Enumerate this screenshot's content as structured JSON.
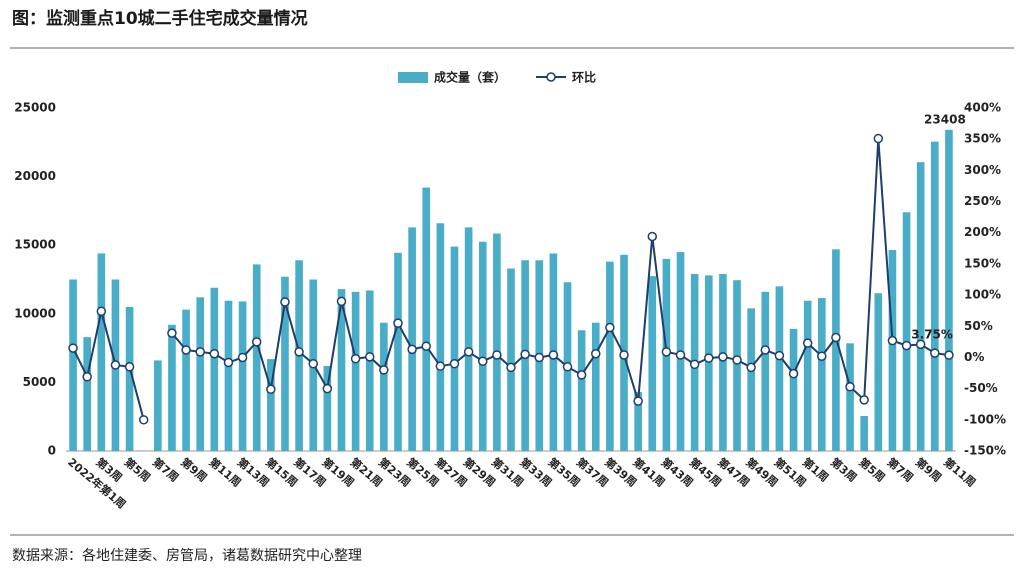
{
  "chart_data": {
    "type": "bar-line",
    "title": "图：监测重点10城二手住宅成交量情况",
    "source": "数据来源：各地住建委、房管局，诸葛数据研究中心整理",
    "categories": [
      "2022年第1周",
      null,
      "第3周",
      null,
      "第5周",
      null,
      "第7周",
      null,
      "第9周",
      null,
      "第11周",
      null,
      "第13周",
      null,
      "第15周",
      null,
      "第17周",
      null,
      "第19周",
      null,
      "第21周",
      null,
      "第23周",
      null,
      "第25周",
      null,
      "第27周",
      null,
      "第29周",
      null,
      "第31周",
      null,
      "第33周",
      null,
      "第35周",
      null,
      "第37周",
      null,
      "第39周",
      null,
      "第41周",
      null,
      "第43周",
      null,
      "第45周",
      null,
      "第47周",
      null,
      "第49周",
      null,
      "第51周",
      null,
      "第1周",
      null,
      "第3周",
      null,
      "第5周",
      null,
      "第7周",
      null,
      "第9周",
      null,
      "第11周"
    ],
    "series": [
      {
        "name": "成交量（套）",
        "type": "bar",
        "color": "#4aadc7",
        "values": [
          12500,
          8300,
          14400,
          12500,
          10500,
          0,
          6600,
          9200,
          10300,
          11200,
          11900,
          10950,
          10900,
          13600,
          6700,
          12700,
          13900,
          12500,
          6200,
          11800,
          11600,
          11700,
          9350,
          14450,
          16300,
          19200,
          16600,
          14900,
          16300,
          15250,
          15850,
          13300,
          13900,
          13900,
          14400,
          12300,
          8800,
          9350,
          13800,
          14300,
          4300,
          12750,
          14000,
          14500,
          12900,
          12800,
          12900,
          12450,
          10400,
          11600,
          12000,
          8900,
          10950,
          11150,
          14700,
          7850,
          2550,
          11500,
          14650,
          17400,
          21050,
          22550,
          23408
        ],
        "value_labels": [
          null,
          null,
          null,
          null,
          null,
          null,
          null,
          null,
          null,
          null,
          null,
          null,
          null,
          null,
          null,
          null,
          null,
          null,
          null,
          null,
          null,
          null,
          null,
          null,
          null,
          null,
          null,
          null,
          null,
          null,
          null,
          null,
          null,
          null,
          null,
          null,
          null,
          null,
          null,
          null,
          null,
          null,
          null,
          null,
          null,
          null,
          null,
          null,
          null,
          null,
          null,
          null,
          null,
          null,
          null,
          null,
          null,
          null,
          null,
          null,
          null,
          null,
          "23408"
        ]
      },
      {
        "name": "环比",
        "type": "line",
        "axis": "y2",
        "color": "#1f3d6d",
        "values": [
          15,
          -31,
          74,
          -12,
          -15,
          -100,
          null,
          39,
          12,
          9,
          6,
          -8,
          0,
          25,
          -51,
          89,
          9,
          -10,
          -50,
          90,
          -2,
          1,
          -20,
          55,
          13,
          18,
          -14,
          -10,
          9,
          -6,
          4,
          -16,
          5,
          0,
          4,
          -15,
          -28,
          6,
          48,
          4,
          -70,
          194,
          9,
          4,
          -11,
          -1,
          1,
          -4,
          -16,
          12,
          3,
          -26,
          23,
          2,
          32,
          -47,
          -68,
          351,
          27,
          19,
          21,
          7,
          3.75
        ],
        "value_labels": [
          null,
          null,
          null,
          null,
          null,
          null,
          null,
          null,
          null,
          null,
          null,
          null,
          null,
          null,
          null,
          null,
          null,
          null,
          null,
          null,
          null,
          null,
          null,
          null,
          null,
          null,
          null,
          null,
          null,
          null,
          null,
          null,
          null,
          null,
          null,
          null,
          null,
          null,
          null,
          null,
          null,
          null,
          null,
          null,
          null,
          null,
          null,
          null,
          null,
          null,
          null,
          null,
          null,
          null,
          null,
          null,
          null,
          null,
          null,
          null,
          null,
          null,
          "3.75%"
        ]
      }
    ],
    "ylim": [
      0,
      25000
    ],
    "yticks": [
      0,
      5000,
      10000,
      15000,
      20000,
      25000
    ],
    "y2lim": [
      -150,
      400
    ],
    "y2ticks": [
      {
        "value": -150,
        "label": "-150%"
      },
      {
        "value": -100,
        "label": "-100%"
      },
      {
        "value": -50,
        "label": "-50%"
      },
      {
        "value": 0,
        "label": "0%"
      },
      {
        "value": 50,
        "label": "50%"
      },
      {
        "value": 100,
        "label": "100%"
      },
      {
        "value": 150,
        "label": "150%"
      },
      {
        "value": 200,
        "label": "200%"
      },
      {
        "value": 250,
        "label": "250%"
      },
      {
        "value": 300,
        "label": "300%"
      },
      {
        "value": 350,
        "label": "350%"
      },
      {
        "value": 400,
        "label": "400%"
      }
    ],
    "legend": "top",
    "grid": false
  }
}
